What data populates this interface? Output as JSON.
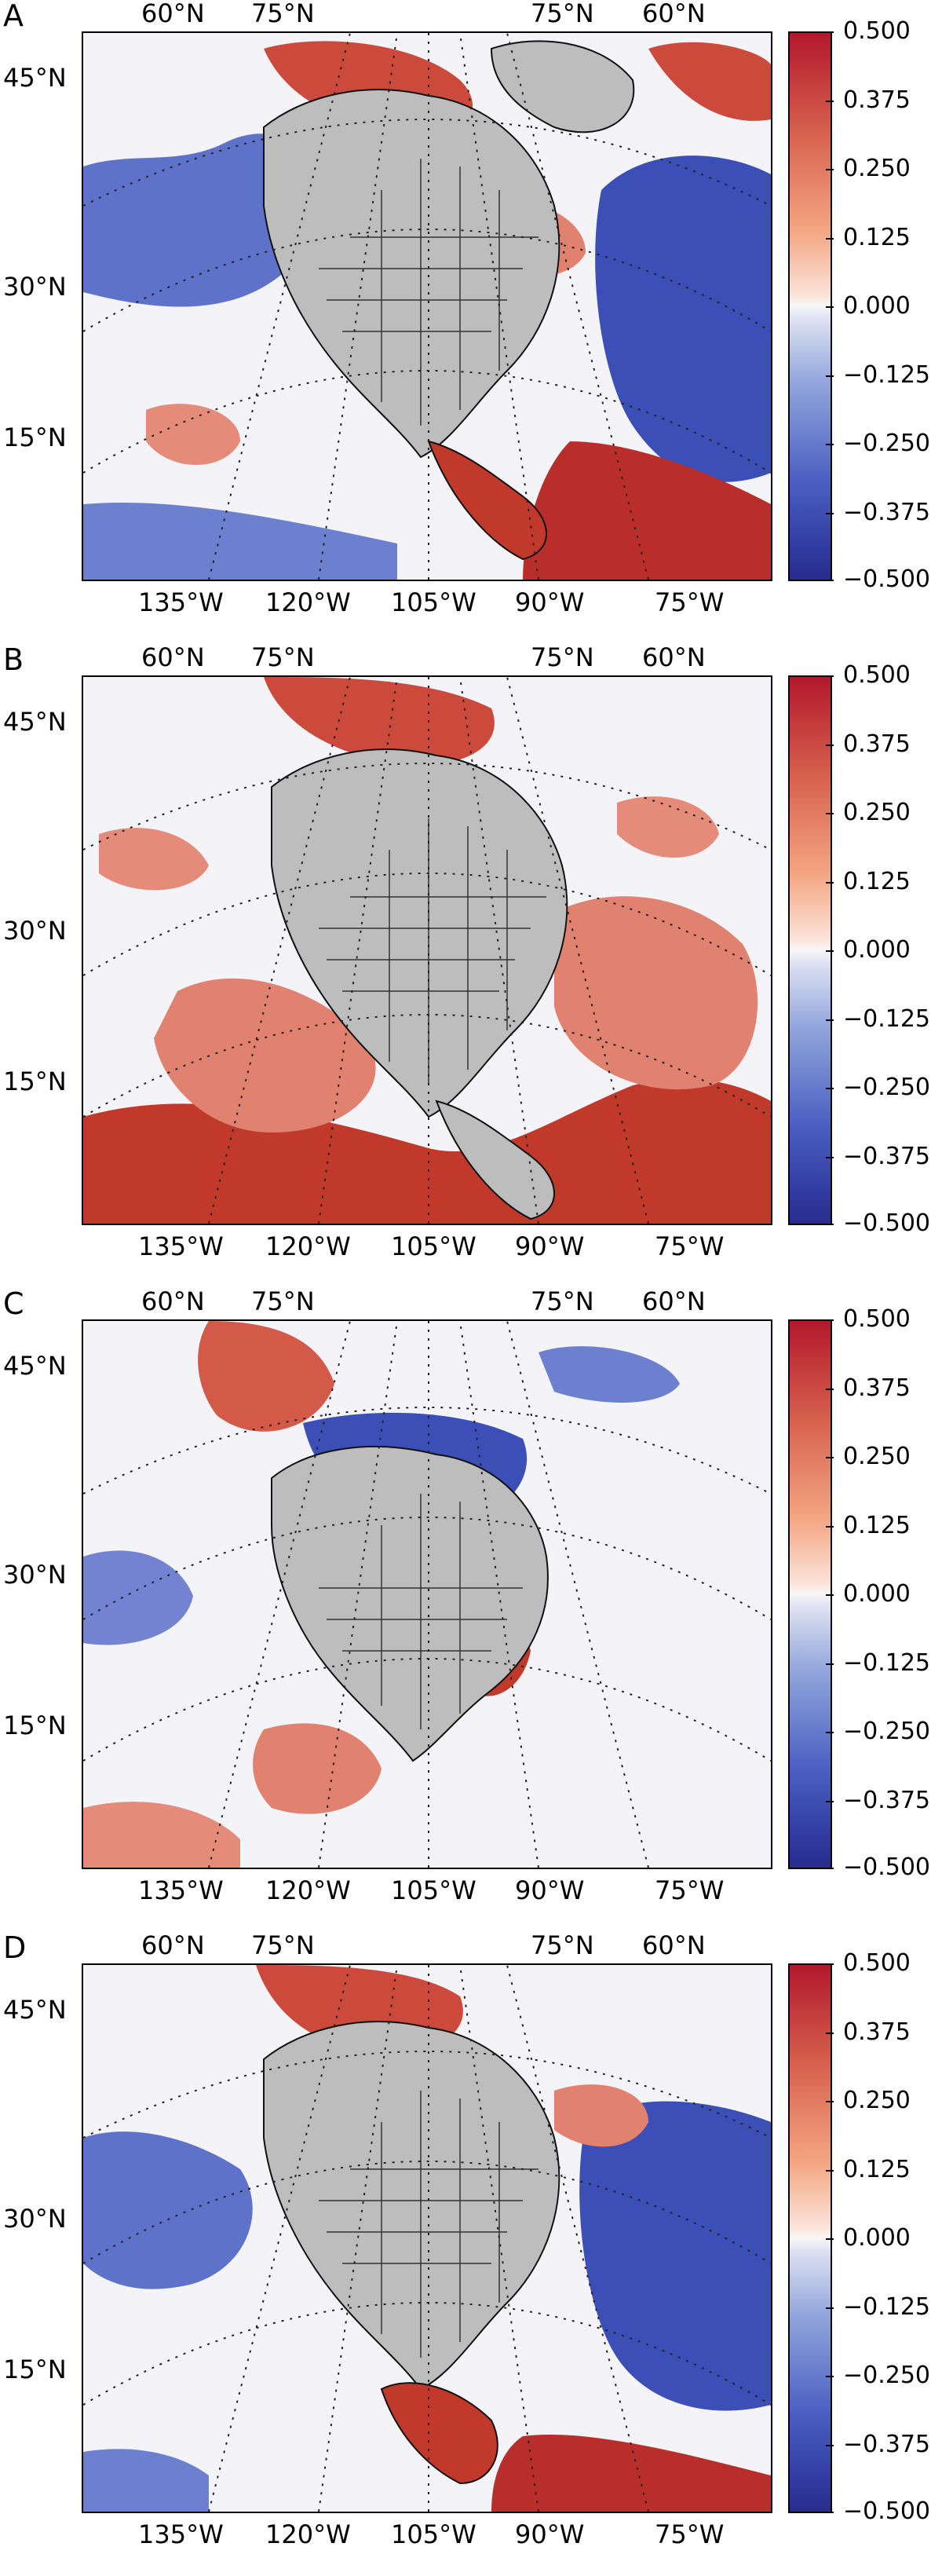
{
  "panels": [
    {
      "label": "A",
      "top_lat": [
        "60°N",
        "75°N",
        "75°N",
        "60°N"
      ],
      "left_lat": [
        "45°N",
        "30°N",
        "15°N"
      ],
      "bottom_lon": [
        "135°W",
        "120°W",
        "105°W",
        "90°W",
        "75°W"
      ],
      "pattern": "mixed-blue-ocean"
    },
    {
      "label": "B",
      "top_lat": [
        "60°N",
        "75°N",
        "75°N",
        "60°N"
      ],
      "left_lat": [
        "45°N",
        "30°N",
        "15°N"
      ],
      "bottom_lon": [
        "135°W",
        "120°W",
        "105°W",
        "90°W",
        "75°W"
      ],
      "pattern": "red-ocean"
    },
    {
      "label": "C",
      "top_lat": [
        "60°N",
        "75°N",
        "75°N",
        "60°N"
      ],
      "left_lat": [
        "45°N",
        "30°N",
        "15°N"
      ],
      "bottom_lon": [
        "135°W",
        "120°W",
        "105°W",
        "90°W",
        "75°W"
      ],
      "pattern": "mixed-light"
    },
    {
      "label": "D",
      "top_lat": [
        "60°N",
        "75°N",
        "75°N",
        "60°N"
      ],
      "left_lat": [
        "45°N",
        "30°N",
        "15°N"
      ],
      "bottom_lon": [
        "135°W",
        "120°W",
        "105°W",
        "90°W",
        "75°W"
      ],
      "pattern": "mixed-blue-ocean"
    }
  ],
  "colorbar": {
    "ticks": [
      "0.500",
      "0.375",
      "0.250",
      "0.125",
      "0.000",
      "−0.125",
      "−0.250",
      "−0.375",
      "−0.500"
    ],
    "min": -0.5,
    "max": 0.5,
    "colors": {
      "high": "#b2182b",
      "mid": "#f7f7f7",
      "low": "#262b8f",
      "land": "#bdbdbd"
    }
  }
}
